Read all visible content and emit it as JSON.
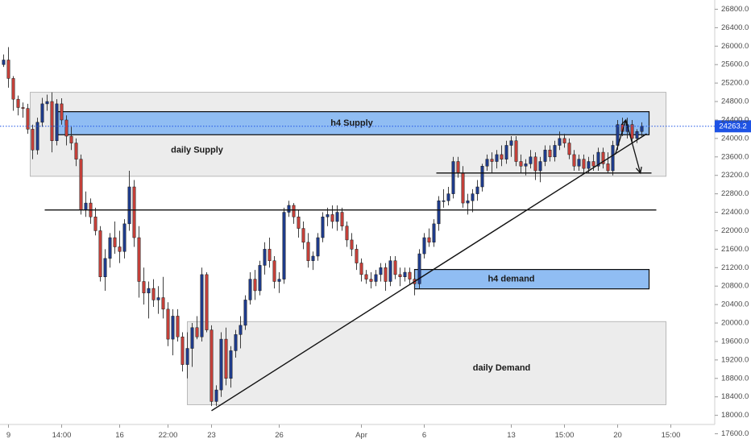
{
  "chart_data": {
    "type": "candlestick",
    "y_axis": {
      "position": "right",
      "range": [
        17400,
        27000
      ],
      "ticks": [
        17600,
        18000,
        18400,
        18800,
        19200,
        19600,
        20000,
        20400,
        20800,
        21200,
        21600,
        22000,
        22400,
        22800,
        23200,
        23600,
        24000,
        24400,
        24800,
        25200,
        25600,
        26000,
        26400,
        26800
      ]
    },
    "x_axis": {
      "ticks": [
        {
          "label": "9",
          "index": 1
        },
        {
          "label": "14:00",
          "index": 12
        },
        {
          "label": "16",
          "index": 24
        },
        {
          "label": "22:00",
          "index": 34
        },
        {
          "label": "23",
          "index": 43
        },
        {
          "label": "26",
          "index": 57
        },
        {
          "label": "Apr",
          "index": 74
        },
        {
          "label": "6",
          "index": 87
        },
        {
          "label": "13",
          "index": 105
        },
        {
          "label": "15:00",
          "index": 116
        },
        {
          "label": "20",
          "index": 127
        },
        {
          "label": "15:00",
          "index": 138
        }
      ]
    },
    "last_price": {
      "value": 24263.2,
      "label": "24263.2",
      "color": "#1e53e5"
    },
    "colors": {
      "up": "#1f3c8c",
      "down": "#c6413a",
      "wick": "#2b2b2b",
      "zone_blue": "#90bdf3",
      "zone_blue_border": "#0b0b0b",
      "zone_grey": "#e6e6e6",
      "zone_grey_border": "#b9b9b9"
    },
    "zones": [
      {
        "label": "daily Supply",
        "style": "grey",
        "x0": 5.5,
        "x1": 137,
        "top": 25000,
        "bottom": 23180,
        "label_at": [
          40,
          23740
        ]
      },
      {
        "label": "h4 Supply",
        "style": "blue",
        "x0": 11,
        "x1": 133.5,
        "top": 24580,
        "bottom": 24080,
        "label_at": [
          72,
          24330
        ]
      },
      {
        "label": "h4 demand",
        "style": "blue",
        "x0": 85,
        "x1": 133.5,
        "top": 21160,
        "bottom": 20740,
        "label_at": [
          105,
          20950
        ]
      },
      {
        "label": "daily Demand",
        "style": "grey",
        "x0": 38,
        "x1": 137,
        "top": 20030,
        "bottom": 18230,
        "label_at": [
          103,
          19020
        ]
      }
    ],
    "lines": [
      {
        "kind": "horizontal",
        "x0": 8.5,
        "x1": 135,
        "y": 22450
      },
      {
        "kind": "horizontal",
        "x0": 89.5,
        "x1": 134,
        "y": 23250
      },
      {
        "kind": "trendline",
        "x0": 43,
        "y0": 18100,
        "x1": 133,
        "y1": 24100
      }
    ],
    "arrows": [
      {
        "from": [
          126.5,
          23650
        ],
        "to": [
          128.7,
          24400
        ]
      },
      {
        "from": [
          128.7,
          24400
        ],
        "to": [
          131.7,
          23250
        ]
      }
    ],
    "candles": [
      [
        25600,
        25820,
        25550,
        25700
      ],
      [
        25700,
        25980,
        25100,
        25300
      ],
      [
        25300,
        25350,
        24600,
        24850
      ],
      [
        24850,
        24930,
        24500,
        24670
      ],
      [
        24670,
        24780,
        24450,
        24650
      ],
      [
        24650,
        24750,
        24100,
        24200
      ],
      [
        24200,
        24300,
        23550,
        23750
      ],
      [
        23750,
        24450,
        23650,
        24350
      ],
      [
        24350,
        24880,
        24250,
        24750
      ],
      [
        24750,
        24950,
        24600,
        24800
      ],
      [
        24800,
        25000,
        23700,
        23950
      ],
      [
        23950,
        24850,
        23850,
        24750
      ],
      [
        24750,
        24870,
        24300,
        24400
      ],
      [
        24400,
        24500,
        23850,
        24050
      ],
      [
        24050,
        24250,
        23750,
        23900
      ],
      [
        23900,
        24000,
        23400,
        23550
      ],
      [
        23550,
        23650,
        22350,
        22450
      ],
      [
        22450,
        22850,
        22300,
        22600
      ],
      [
        22600,
        22700,
        22150,
        22300
      ],
      [
        22300,
        22500,
        21900,
        22000
      ],
      [
        22000,
        22100,
        20900,
        21000
      ],
      [
        21000,
        21600,
        20700,
        21400
      ],
      [
        21400,
        21950,
        21200,
        21850
      ],
      [
        21850,
        22200,
        21500,
        21650
      ],
      [
        21650,
        22000,
        21300,
        21550
      ],
      [
        21550,
        22250,
        21400,
        22150
      ],
      [
        22150,
        23300,
        22000,
        22950
      ],
      [
        22950,
        23100,
        21650,
        21850
      ],
      [
        21850,
        22100,
        20550,
        20900
      ],
      [
        20900,
        21200,
        20400,
        20650
      ],
      [
        20650,
        20900,
        20100,
        20750
      ],
      [
        20750,
        20950,
        20350,
        20500
      ],
      [
        20500,
        20800,
        20200,
        20550
      ],
      [
        20550,
        21000,
        20100,
        20300
      ],
      [
        20300,
        20450,
        19500,
        19650
      ],
      [
        19650,
        20300,
        19300,
        20150
      ],
      [
        20150,
        20300,
        19600,
        19700
      ],
      [
        19700,
        19800,
        18950,
        19100
      ],
      [
        19100,
        19800,
        18800,
        19450
      ],
      [
        19450,
        20000,
        19050,
        19900
      ],
      [
        19900,
        20150,
        19650,
        19700
      ],
      [
        19700,
        21200,
        19600,
        21050
      ],
      [
        21050,
        21100,
        19800,
        19850
      ],
      [
        19850,
        19950,
        18200,
        18300
      ],
      [
        18300,
        18650,
        18200,
        18550
      ],
      [
        18550,
        19800,
        18400,
        19650
      ],
      [
        19650,
        19900,
        18650,
        18800
      ],
      [
        18800,
        19500,
        18600,
        19400
      ],
      [
        19400,
        19850,
        19250,
        19750
      ],
      [
        19750,
        20150,
        19450,
        19950
      ],
      [
        19950,
        20600,
        19850,
        20500
      ],
      [
        20500,
        21100,
        20400,
        20950
      ],
      [
        20950,
        21150,
        20500,
        20700
      ],
      [
        20700,
        21350,
        20600,
        21250
      ],
      [
        21250,
        21750,
        21050,
        21600
      ],
      [
        21600,
        21850,
        21200,
        21350
      ],
      [
        21350,
        21450,
        20750,
        20900
      ],
      [
        20900,
        21100,
        20650,
        20950
      ],
      [
        20950,
        22500,
        20850,
        22400
      ],
      [
        22400,
        22650,
        22300,
        22550
      ],
      [
        22550,
        22600,
        22150,
        22300
      ],
      [
        22300,
        22450,
        21850,
        22050
      ],
      [
        22050,
        22200,
        21600,
        21750
      ],
      [
        21750,
        21950,
        21200,
        21350
      ],
      [
        21350,
        21550,
        21150,
        21450
      ],
      [
        21450,
        21950,
        21350,
        21850
      ],
      [
        21850,
        22400,
        21750,
        22300
      ],
      [
        22300,
        22500,
        22100,
        22350
      ],
      [
        22350,
        22550,
        22050,
        22200
      ],
      [
        22200,
        22550,
        22000,
        22400
      ],
      [
        22400,
        22500,
        22000,
        22100
      ],
      [
        22100,
        22200,
        21650,
        21800
      ],
      [
        21800,
        21950,
        21450,
        21600
      ],
      [
        21600,
        21700,
        21150,
        21300
      ],
      [
        21300,
        21400,
        20900,
        21050
      ],
      [
        21050,
        21150,
        20850,
        20950
      ],
      [
        20950,
        21100,
        20750,
        20900
      ],
      [
        20900,
        21150,
        20800,
        21050
      ],
      [
        21050,
        21300,
        20900,
        21200
      ],
      [
        21200,
        21300,
        20700,
        20900
      ],
      [
        20900,
        21450,
        20800,
        21350
      ],
      [
        21350,
        21450,
        20950,
        21050
      ],
      [
        21050,
        21200,
        20800,
        21000
      ],
      [
        21000,
        21200,
        20900,
        21100
      ],
      [
        21100,
        21200,
        20850,
        20950
      ],
      [
        20950,
        21150,
        20600,
        20850
      ],
      [
        20850,
        21600,
        20750,
        21500
      ],
      [
        21500,
        21950,
        21400,
        21850
      ],
      [
        21850,
        22050,
        21650,
        21750
      ],
      [
        21750,
        22250,
        21650,
        22150
      ],
      [
        22150,
        22750,
        22000,
        22650
      ],
      [
        22650,
        22900,
        22500,
        22650
      ],
      [
        22650,
        22950,
        22550,
        22800
      ],
      [
        22800,
        23600,
        22700,
        23500
      ],
      [
        23500,
        23600,
        23150,
        23250
      ],
      [
        23250,
        23400,
        22500,
        22600
      ],
      [
        22600,
        22800,
        22350,
        22650
      ],
      [
        22650,
        22900,
        22400,
        22800
      ],
      [
        22800,
        23100,
        22650,
        22950
      ],
      [
        22950,
        23450,
        22850,
        23400
      ],
      [
        23400,
        23650,
        23300,
        23550
      ],
      [
        23550,
        23700,
        23250,
        23500
      ],
      [
        23500,
        23750,
        23350,
        23650
      ],
      [
        23650,
        23850,
        23400,
        23550
      ],
      [
        23550,
        23950,
        23450,
        23850
      ],
      [
        23850,
        24050,
        23600,
        23950
      ],
      [
        23950,
        24050,
        23400,
        23500
      ],
      [
        23500,
        23650,
        23250,
        23400
      ],
      [
        23400,
        23550,
        23200,
        23450
      ],
      [
        23450,
        23750,
        23350,
        23600
      ],
      [
        23600,
        23700,
        23100,
        23300
      ],
      [
        23300,
        23600,
        23050,
        23500
      ],
      [
        23500,
        23850,
        23400,
        23750
      ],
      [
        23750,
        23850,
        23500,
        23600
      ],
      [
        23600,
        23950,
        23500,
        23850
      ],
      [
        23850,
        24150,
        23750,
        24000
      ],
      [
        24000,
        24100,
        23800,
        23900
      ],
      [
        23900,
        24000,
        23550,
        23650
      ],
      [
        23650,
        23750,
        23300,
        23400
      ],
      [
        23400,
        23650,
        23300,
        23550
      ],
      [
        23550,
        23650,
        23250,
        23350
      ],
      [
        23350,
        23600,
        23250,
        23500
      ],
      [
        23500,
        23650,
        23300,
        23400
      ],
      [
        23400,
        23800,
        23300,
        23700
      ],
      [
        23700,
        23800,
        23350,
        23450
      ],
      [
        23450,
        23700,
        23250,
        23300
      ],
      [
        23300,
        23950,
        23200,
        23850
      ],
      [
        23850,
        24400,
        23750,
        24300
      ],
      [
        24300,
        24450,
        24050,
        24150
      ],
      [
        24150,
        24450,
        24000,
        24300
      ],
      [
        24300,
        24400,
        23900,
        24000
      ],
      [
        24000,
        24200,
        23900,
        24150
      ],
      [
        24150,
        24350,
        24050,
        24263.2
      ]
    ]
  }
}
